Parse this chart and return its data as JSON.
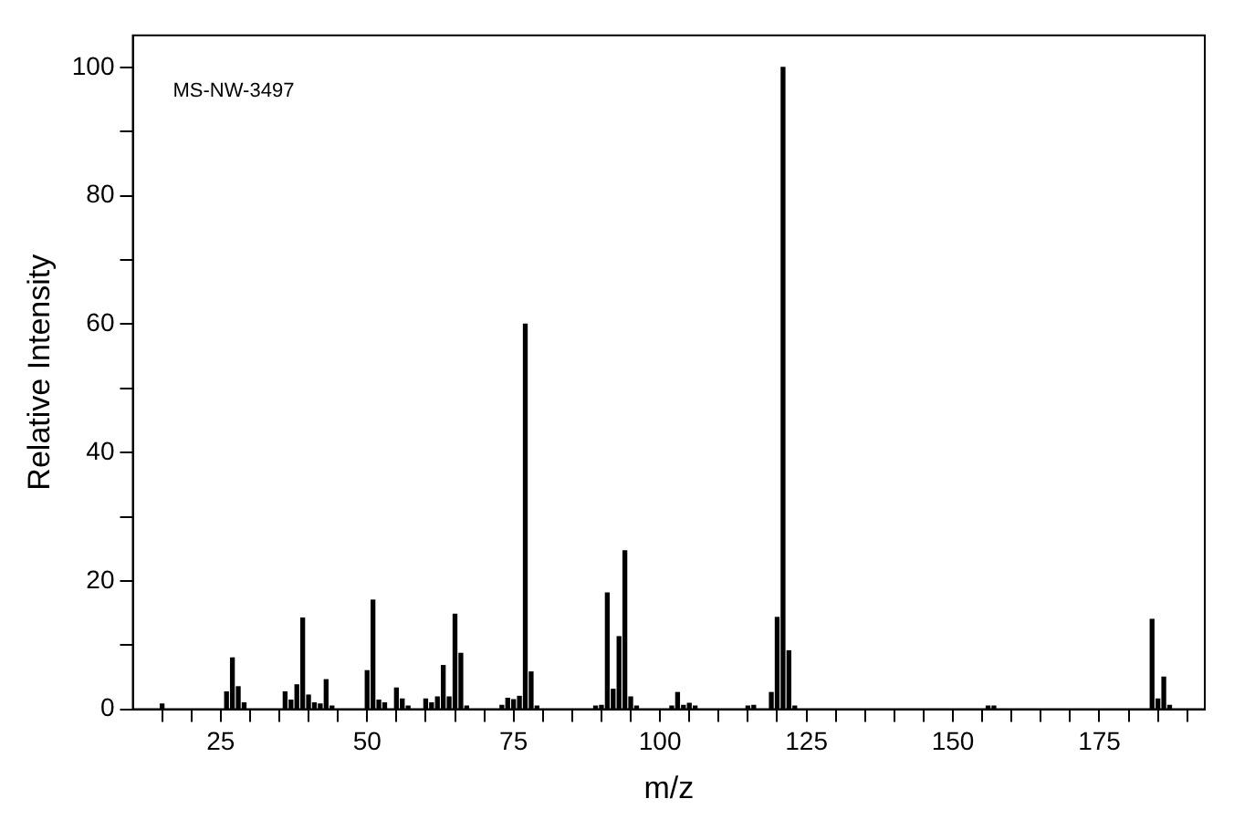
{
  "chart_data": {
    "type": "bar",
    "xlabel": "m/z",
    "ylabel": "Relative Intensity",
    "annotations": [
      "MS-NW-3497"
    ],
    "x": [
      15,
      26,
      27,
      28,
      29,
      36,
      37,
      38,
      39,
      40,
      41,
      42,
      43,
      44,
      50,
      51,
      52,
      53,
      55,
      56,
      57,
      60,
      61,
      62,
      63,
      64,
      65,
      66,
      67,
      73,
      74,
      75,
      76,
      77,
      78,
      79,
      89,
      90,
      91,
      92,
      93,
      94,
      95,
      96,
      102,
      103,
      104,
      105,
      106,
      115,
      116,
      119,
      120,
      121,
      122,
      123,
      156,
      157,
      184,
      185,
      186,
      187
    ],
    "values": [
      0.8,
      2.7,
      8.0,
      3.5,
      1.0,
      2.7,
      1.4,
      3.8,
      14.2,
      2.2,
      1.0,
      0.8,
      4.6,
      0.5,
      6.0,
      17.0,
      1.4,
      1.0,
      3.3,
      1.6,
      0.5,
      1.6,
      1.0,
      1.9,
      6.8,
      1.9,
      14.8,
      8.7,
      0.5,
      0.6,
      1.7,
      1.5,
      2.0,
      60.0,
      5.8,
      0.5,
      0.5,
      0.6,
      18.1,
      3.1,
      11.3,
      24.7,
      1.9,
      0.5,
      0.5,
      2.6,
      0.6,
      0.9,
      0.5,
      0.5,
      0.6,
      2.6,
      14.3,
      100,
      9.1,
      0.5,
      0.5,
      0.5,
      14.0,
      1.6,
      5.0,
      0.6
    ],
    "color": "#000000",
    "xlim": [
      10,
      193
    ],
    "xticks": [
      {
        "value": 15,
        "label": null
      },
      {
        "value": 20,
        "label": null
      },
      25,
      {
        "value": 30,
        "label": null
      },
      {
        "value": 35,
        "label": null
      },
      {
        "value": 40,
        "label": null
      },
      {
        "value": 45,
        "label": null
      },
      50,
      {
        "value": 55,
        "label": null
      },
      {
        "value": 60,
        "label": null
      },
      {
        "value": 65,
        "label": null
      },
      {
        "value": 70,
        "label": null
      },
      75,
      {
        "value": 80,
        "label": null
      },
      {
        "value": 85,
        "label": null
      },
      {
        "value": 90,
        "label": null
      },
      {
        "value": 95,
        "label": null
      },
      100,
      {
        "value": 105,
        "label": null
      },
      {
        "value": 110,
        "label": null
      },
      {
        "value": 115,
        "label": null
      },
      {
        "value": 120,
        "label": null
      },
      125,
      {
        "value": 130,
        "label": null
      },
      {
        "value": 135,
        "label": null
      },
      {
        "value": 140,
        "label": null
      },
      {
        "value": 145,
        "label": null
      },
      150,
      {
        "value": 155,
        "label": null
      },
      {
        "value": 160,
        "label": null
      },
      {
        "value": 165,
        "label": null
      },
      {
        "value": 170,
        "label": null
      },
      175,
      {
        "value": 180,
        "label": null
      },
      {
        "value": 185,
        "label": null
      },
      {
        "value": 190,
        "label": null
      }
    ],
    "ylim": [
      0,
      105
    ],
    "yticks": [
      0,
      {
        "value": 10,
        "label": null
      },
      20,
      {
        "value": 30,
        "label": null
      },
      40,
      {
        "value": 50,
        "label": null
      },
      60,
      {
        "value": 70,
        "label": null
      },
      80,
      {
        "value": 90,
        "label": null
      },
      100
    ],
    "grid": false,
    "legend": false
  }
}
